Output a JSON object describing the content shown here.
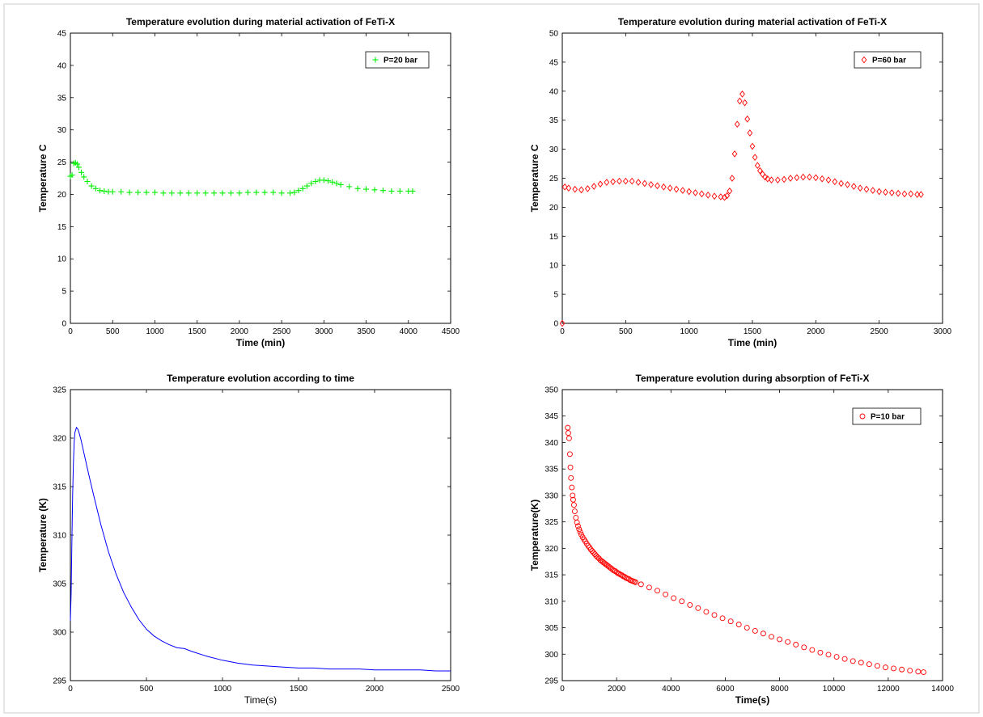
{
  "chart_data": [
    {
      "type": "scatter",
      "title": "Temperature evolution during material activation of FeTi-X",
      "xlabel": "Time (min)",
      "ylabel": "Temperature C",
      "xlim": [
        0,
        4500
      ],
      "ylim": [
        0,
        45
      ],
      "xticks": [
        0,
        500,
        1000,
        1500,
        2000,
        2500,
        3000,
        3500,
        4000,
        4500
      ],
      "yticks": [
        0,
        5,
        10,
        15,
        20,
        25,
        30,
        35,
        40,
        45
      ],
      "legend": "top-right",
      "grid": false,
      "series": [
        {
          "name": "P=20 bar",
          "marker": "plus",
          "color": "#00ee00",
          "x": [
            0,
            20,
            40,
            60,
            80,
            100,
            130,
            160,
            200,
            250,
            300,
            350,
            400,
            450,
            500,
            600,
            700,
            800,
            900,
            1000,
            1100,
            1200,
            1300,
            1400,
            1500,
            1600,
            1700,
            1800,
            1900,
            2000,
            2100,
            2200,
            2300,
            2400,
            2500,
            2600,
            2650,
            2700,
            2750,
            2800,
            2850,
            2900,
            2950,
            3000,
            3050,
            3100,
            3150,
            3200,
            3300,
            3400,
            3500,
            3600,
            3700,
            3800,
            3900,
            4000,
            4050
          ],
          "y": [
            22.8,
            23.0,
            24.8,
            24.9,
            24.7,
            24.2,
            23.4,
            22.7,
            22.0,
            21.3,
            20.9,
            20.6,
            20.5,
            20.4,
            20.4,
            20.4,
            20.3,
            20.3,
            20.3,
            20.3,
            20.2,
            20.2,
            20.2,
            20.2,
            20.2,
            20.2,
            20.2,
            20.2,
            20.2,
            20.2,
            20.3,
            20.3,
            20.3,
            20.3,
            20.2,
            20.2,
            20.3,
            20.6,
            20.9,
            21.3,
            21.7,
            22.0,
            22.2,
            22.2,
            22.1,
            21.9,
            21.7,
            21.5,
            21.2,
            20.9,
            20.8,
            20.7,
            20.6,
            20.5,
            20.5,
            20.5,
            20.5
          ]
        }
      ]
    },
    {
      "type": "scatter",
      "title": "Temperature evolution during material activation of FeTi-X",
      "xlabel": "Time (min)",
      "ylabel": "Temperature C",
      "xlim": [
        0,
        3000
      ],
      "ylim": [
        0,
        50
      ],
      "xticks": [
        0,
        500,
        1000,
        1500,
        2000,
        2500,
        3000
      ],
      "yticks": [
        0,
        5,
        10,
        15,
        20,
        25,
        30,
        35,
        40,
        45,
        50
      ],
      "legend": "top-right",
      "grid": false,
      "series": [
        {
          "name": "P=60 bar",
          "marker": "diamond",
          "color": "#ff0000",
          "x": [
            0,
            20,
            50,
            100,
            150,
            200,
            250,
            300,
            350,
            400,
            450,
            500,
            550,
            600,
            650,
            700,
            750,
            800,
            850,
            900,
            950,
            1000,
            1050,
            1100,
            1150,
            1200,
            1250,
            1280,
            1300,
            1320,
            1340,
            1360,
            1380,
            1400,
            1420,
            1440,
            1460,
            1480,
            1500,
            1520,
            1540,
            1560,
            1580,
            1600,
            1620,
            1650,
            1700,
            1750,
            1800,
            1850,
            1900,
            1950,
            2000,
            2050,
            2100,
            2150,
            2200,
            2250,
            2300,
            2350,
            2400,
            2450,
            2500,
            2550,
            2600,
            2650,
            2700,
            2750,
            2800,
            2830
          ],
          "y": [
            0,
            23.5,
            23.3,
            23.1,
            23.0,
            23.2,
            23.6,
            24.0,
            24.3,
            24.4,
            24.5,
            24.5,
            24.5,
            24.3,
            24.1,
            23.9,
            23.7,
            23.5,
            23.3,
            23.1,
            22.9,
            22.7,
            22.5,
            22.3,
            22.1,
            21.9,
            21.8,
            21.7,
            22.0,
            22.8,
            25.0,
            29.2,
            34.3,
            38.3,
            39.5,
            38.0,
            35.2,
            32.8,
            30.5,
            28.6,
            27.2,
            26.3,
            25.7,
            25.2,
            24.9,
            24.7,
            24.7,
            24.8,
            25.0,
            25.1,
            25.2,
            25.2,
            25.1,
            24.9,
            24.7,
            24.4,
            24.1,
            23.9,
            23.6,
            23.3,
            23.1,
            22.9,
            22.7,
            22.6,
            22.5,
            22.4,
            22.3,
            22.3,
            22.2,
            22.2
          ]
        }
      ]
    },
    {
      "type": "line",
      "title": "Temperature evolution according to time",
      "xlabel": "Time(s)",
      "ylabel": "Temperature (K)",
      "xlim": [
        0,
        2500
      ],
      "ylim": [
        295,
        325
      ],
      "xticks": [
        0,
        500,
        1000,
        1500,
        2000,
        2500
      ],
      "yticks": [
        295,
        300,
        305,
        310,
        315,
        320,
        325
      ],
      "grid": false,
      "series": [
        {
          "color": "#0000ff",
          "x": [
            0,
            5,
            10,
            15,
            20,
            25,
            30,
            40,
            50,
            60,
            70,
            80,
            100,
            120,
            150,
            200,
            250,
            300,
            350,
            400,
            450,
            500,
            550,
            600,
            650,
            700,
            750,
            800,
            900,
            1000,
            1100,
            1200,
            1300,
            1400,
            1500,
            1600,
            1700,
            1800,
            1900,
            2000,
            2100,
            2200,
            2300,
            2400,
            2500
          ],
          "y": [
            301.2,
            304.0,
            309.5,
            314.3,
            317.5,
            319.6,
            320.6,
            321.1,
            320.9,
            320.4,
            319.8,
            319.1,
            317.7,
            316.3,
            314.3,
            311.1,
            308.3,
            306.0,
            304.1,
            302.6,
            301.3,
            300.3,
            299.6,
            299.1,
            298.7,
            298.4,
            298.3,
            298.0,
            297.5,
            297.1,
            296.8,
            296.6,
            296.5,
            296.4,
            296.3,
            296.3,
            296.2,
            296.2,
            296.2,
            296.1,
            296.1,
            296.1,
            296.1,
            296.0,
            296.0
          ]
        }
      ]
    },
    {
      "type": "scatter",
      "title": "Temperature evolution during absorption of FeTi-X",
      "xlabel": "Time(s)",
      "ylabel": "Temperature(K)",
      "xlim": [
        0,
        14000
      ],
      "ylim": [
        295,
        350
      ],
      "xticks": [
        0,
        2000,
        4000,
        6000,
        8000,
        10000,
        12000,
        14000
      ],
      "yticks": [
        295,
        300,
        305,
        310,
        315,
        320,
        325,
        330,
        335,
        340,
        345,
        350
      ],
      "legend": "top-right",
      "grid": false,
      "series": [
        {
          "name": "P=10 bar",
          "marker": "circle",
          "color": "#ff0000",
          "x": [
            200,
            220,
            250,
            280,
            300,
            320,
            350,
            380,
            400,
            430,
            460,
            500,
            540,
            580,
            620,
            660,
            700,
            750,
            800,
            850,
            900,
            950,
            1000,
            1050,
            1100,
            1150,
            1200,
            1250,
            1300,
            1350,
            1400,
            1450,
            1500,
            1550,
            1600,
            1650,
            1700,
            1750,
            1800,
            1850,
            1900,
            1950,
            2000,
            2050,
            2100,
            2150,
            2200,
            2250,
            2300,
            2350,
            2400,
            2450,
            2500,
            2550,
            2600,
            2650,
            2700,
            2900,
            3200,
            3500,
            3800,
            4100,
            4400,
            4700,
            5000,
            5300,
            5600,
            5900,
            6200,
            6500,
            6800,
            7100,
            7400,
            7700,
            8000,
            8300,
            8600,
            8900,
            9200,
            9500,
            9800,
            10100,
            10400,
            10700,
            11000,
            11300,
            11600,
            11900,
            12200,
            12500,
            12800,
            13100,
            13300
          ],
          "y": [
            342.8,
            341.8,
            340.8,
            337.8,
            335.3,
            333.3,
            331.5,
            330.0,
            329.2,
            328.2,
            327.0,
            325.8,
            324.9,
            324.2,
            323.6,
            323.1,
            322.6,
            322.1,
            321.7,
            321.3,
            320.9,
            320.5,
            320.2,
            319.8,
            319.5,
            319.2,
            318.9,
            318.6,
            318.3,
            318.1,
            317.8,
            317.6,
            317.4,
            317.2,
            317.0,
            316.8,
            316.6,
            316.4,
            316.2,
            316.0,
            315.8,
            315.7,
            315.5,
            315.3,
            315.2,
            315.0,
            314.9,
            314.7,
            314.6,
            314.4,
            314.3,
            314.2,
            314.0,
            313.9,
            313.8,
            313.7,
            313.6,
            313.2,
            312.6,
            312.0,
            311.3,
            310.6,
            310.0,
            309.3,
            308.7,
            308.0,
            307.4,
            306.8,
            306.2,
            305.6,
            305.0,
            304.4,
            303.9,
            303.3,
            302.8,
            302.3,
            301.8,
            301.3,
            300.8,
            300.3,
            299.9,
            299.5,
            299.1,
            298.7,
            298.4,
            298.1,
            297.8,
            297.5,
            297.3,
            297.1,
            296.9,
            296.7,
            296.6
          ]
        }
      ]
    }
  ]
}
